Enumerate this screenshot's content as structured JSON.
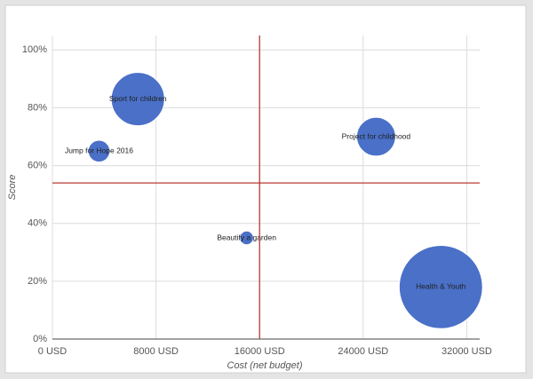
{
  "chart_data": {
    "type": "bubble",
    "x_label": "Cost (net budget)",
    "y_label": "Score",
    "color": "#4a70c8",
    "xlim": [
      0,
      33000
    ],
    "xticks": [
      {
        "value": 0,
        "label": "0 USD"
      },
      {
        "value": 8000,
        "label": "8000 USD"
      },
      {
        "value": 16000,
        "label": "16000 USD"
      },
      {
        "value": 24000,
        "label": "24000 USD"
      },
      {
        "value": 32000,
        "label": "32000 USD"
      }
    ],
    "ylim": [
      0,
      105
    ],
    "yticks": [
      {
        "value": 0,
        "label": "0%"
      },
      {
        "value": 20,
        "label": "20%"
      },
      {
        "value": 40,
        "label": "40%"
      },
      {
        "value": 60,
        "label": "60%"
      },
      {
        "value": 80,
        "label": "80%"
      },
      {
        "value": 100,
        "label": "100%"
      }
    ],
    "grid": true,
    "reference_lines": {
      "x": 16000,
      "y": 54,
      "color": "#b83b33"
    },
    "points": [
      {
        "label": "Sport for children",
        "x": 6600,
        "y": 83,
        "size": 900
      },
      {
        "label": "Jump for Hope 2016",
        "x": 3600,
        "y": 65,
        "size": 150
      },
      {
        "label": "Project for childhood",
        "x": 25000,
        "y": 70,
        "size": 480
      },
      {
        "label": "Beautify a garden",
        "x": 15000,
        "y": 35,
        "size": 60
      },
      {
        "label": "Health & Youth",
        "x": 30000,
        "y": 18,
        "size": 2200
      }
    ]
  }
}
